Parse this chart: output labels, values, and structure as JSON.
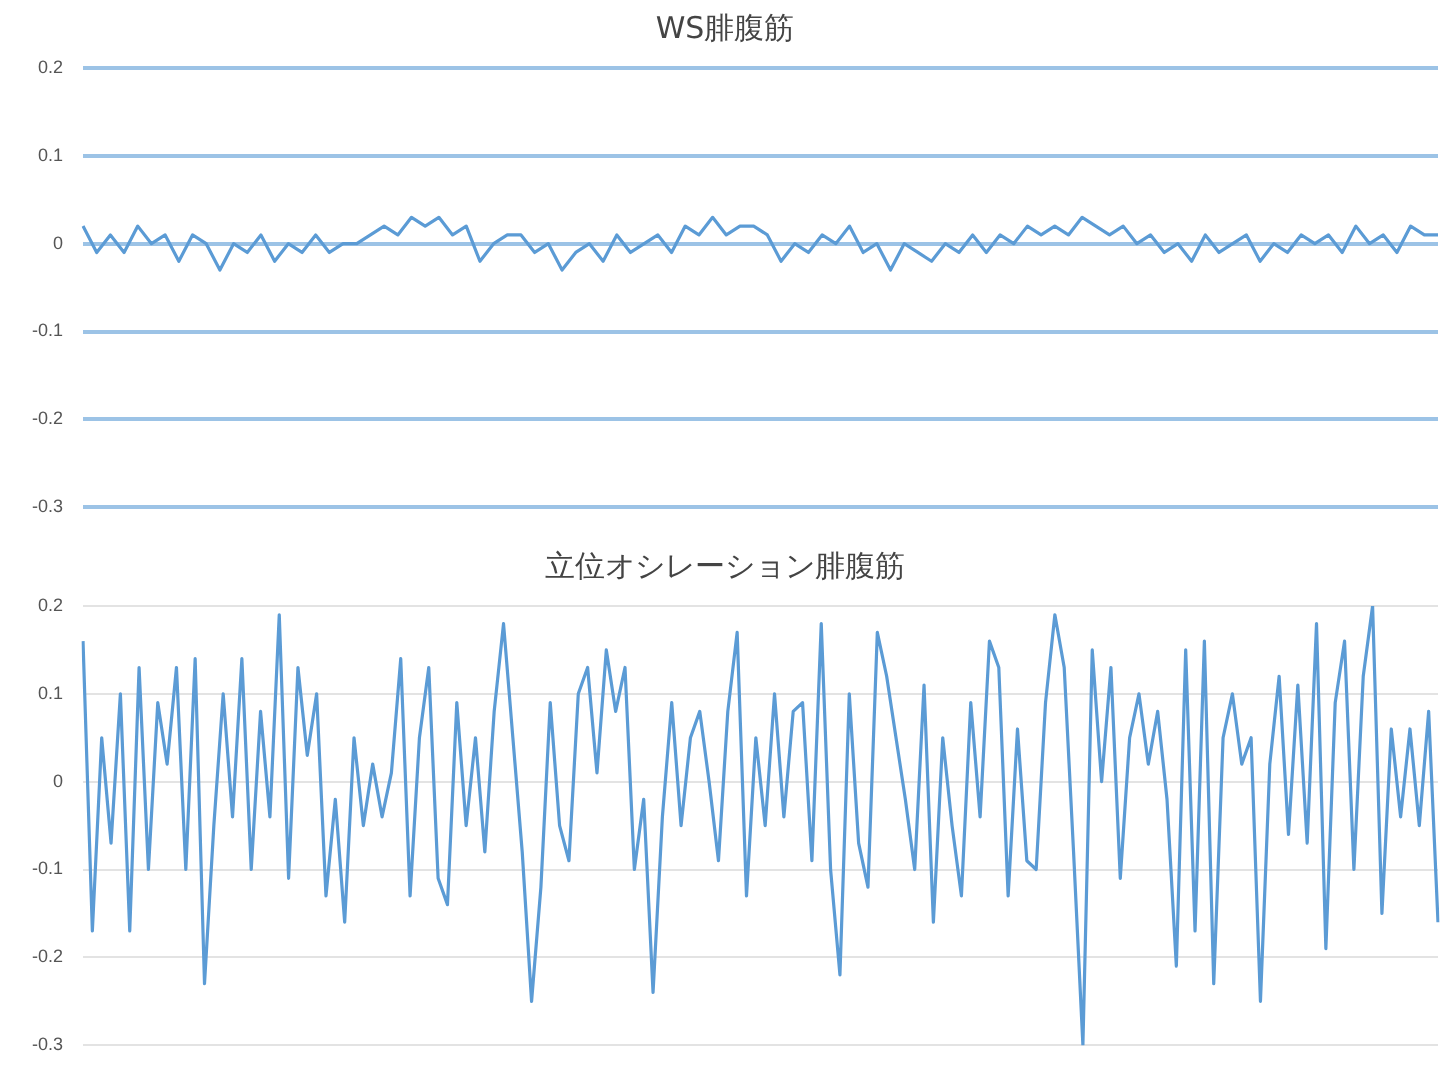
{
  "chart_data": [
    {
      "type": "line",
      "title": "WS腓腹筋",
      "categories": [
        null,
        null,
        null,
        null,
        null,
        null,
        null,
        null,
        null,
        null,
        null,
        null,
        null,
        null,
        null,
        null,
        null,
        null,
        null,
        null,
        null,
        null,
        null,
        null,
        null,
        null,
        null,
        null,
        null,
        null,
        null,
        null,
        null,
        null,
        null,
        null,
        null,
        null,
        null,
        null,
        null,
        null,
        null,
        null,
        null,
        null,
        null,
        null,
        null,
        null,
        null,
        null,
        null,
        null,
        null,
        null,
        null,
        null,
        null,
        null,
        null,
        null,
        null,
        null,
        null,
        null,
        null,
        null,
        null,
        null,
        null,
        null,
        null,
        null,
        null,
        null,
        null,
        null,
        null,
        null,
        null,
        null,
        null,
        null,
        null,
        null,
        null,
        null,
        null,
        null,
        null,
        null,
        null,
        null,
        null,
        null,
        null,
        null,
        null,
        null
      ],
      "series": [
        {
          "color": "#5b9bd5",
          "values": [
            0.02,
            -0.01,
            0.01,
            -0.01,
            0.02,
            0,
            0.01,
            -0.02,
            0.01,
            0,
            -0.03,
            0,
            -0.01,
            0.01,
            -0.02,
            0,
            -0.01,
            0.01,
            -0.01,
            0,
            0,
            0.01,
            0.02,
            0.01,
            0.03,
            0.02,
            0.03,
            0.01,
            0.02,
            -0.02,
            0,
            0.01,
            0.01,
            -0.01,
            0,
            -0.03,
            -0.01,
            0,
            -0.02,
            0.01,
            -0.01,
            0,
            0.01,
            -0.01,
            0.02,
            0.01,
            0.03,
            0.01,
            0.02,
            0.02,
            0.01,
            -0.02,
            0,
            -0.01,
            0.01,
            0,
            0.02,
            -0.01,
            0,
            -0.03,
            0,
            -0.01,
            -0.02,
            0,
            -0.01,
            0.01,
            -0.01,
            0.01,
            0,
            0.02,
            0.01,
            0.02,
            0.01,
            0.03,
            0.02,
            0.01,
            0.02,
            0,
            0.01,
            -0.01,
            0,
            -0.02,
            0.01,
            -0.01,
            0,
            0.01,
            -0.02,
            0,
            -0.01,
            0.01,
            0,
            0.01,
            -0.01,
            0.02,
            0,
            0.01,
            -0.01,
            0.02,
            0.01,
            0.01
          ]
        }
      ],
      "ylim": [
        -0.3,
        0.2
      ],
      "yticks": [
        -0.3,
        -0.2,
        -0.1,
        0,
        0.1,
        0.2
      ],
      "grid": "y",
      "tick_labels": "y",
      "legend": false,
      "marker": "none"
    },
    {
      "type": "line",
      "title": "立位オシレーション腓腹筋",
      "categories": [
        null,
        null,
        null,
        null,
        null,
        null,
        null,
        null,
        null,
        null,
        null,
        null,
        null,
        null,
        null,
        null,
        null,
        null,
        null,
        null,
        null,
        null,
        null,
        null,
        null,
        null,
        null,
        null,
        null,
        null,
        null,
        null,
        null,
        null,
        null,
        null,
        null,
        null,
        null,
        null,
        null,
        null,
        null,
        null,
        null,
        null,
        null,
        null,
        null,
        null,
        null,
        null,
        null,
        null,
        null,
        null,
        null,
        null,
        null,
        null,
        null,
        null,
        null,
        null,
        null,
        null,
        null,
        null,
        null,
        null,
        null,
        null,
        null,
        null,
        null,
        null,
        null,
        null,
        null,
        null,
        null,
        null,
        null,
        null,
        null,
        null,
        null,
        null,
        null,
        null,
        null,
        null,
        null,
        null,
        null,
        null,
        null,
        null,
        null,
        null,
        null,
        null,
        null,
        null,
        null,
        null,
        null,
        null,
        null,
        null,
        null,
        null,
        null,
        null,
        null,
        null,
        null,
        null,
        null,
        null,
        null,
        null,
        null,
        null,
        null,
        null,
        null,
        null,
        null,
        null,
        null,
        null,
        null,
        null,
        null,
        null,
        null,
        null,
        null,
        null,
        null,
        null,
        null,
        null,
        null,
        null
      ],
      "series": [
        {
          "color": "#5b9bd5",
          "values": [
            0.16,
            -0.17,
            0.05,
            -0.07,
            0.1,
            -0.17,
            0.13,
            -0.1,
            0.09,
            0.02,
            0.13,
            -0.1,
            0.14,
            -0.23,
            -0.05,
            0.1,
            -0.04,
            0.14,
            -0.1,
            0.08,
            -0.04,
            0.19,
            -0.11,
            0.13,
            0.03,
            0.1,
            -0.13,
            -0.02,
            -0.16,
            0.05,
            -0.05,
            0.02,
            -0.04,
            0.01,
            0.14,
            -0.13,
            0.05,
            0.13,
            -0.11,
            -0.14,
            0.09,
            -0.05,
            0.05,
            -0.08,
            0.08,
            0.18,
            0.05,
            -0.08,
            -0.25,
            -0.12,
            0.09,
            -0.05,
            -0.09,
            0.1,
            0.13,
            0.01,
            0.15,
            0.08,
            0.13,
            -0.1,
            -0.02,
            -0.24,
            -0.04,
            0.09,
            -0.05,
            0.05,
            0.08,
            0.0,
            -0.09,
            0.08,
            0.17,
            -0.13,
            0.05,
            -0.05,
            0.1,
            -0.04,
            0.08,
            0.09,
            -0.09,
            0.18,
            -0.1,
            -0.22,
            0.1,
            -0.07,
            -0.12,
            0.17,
            0.12,
            0.05,
            -0.02,
            -0.1,
            0.11,
            -0.16,
            0.05,
            -0.05,
            -0.13,
            0.09,
            -0.04,
            0.16,
            0.13,
            -0.13,
            0.06,
            -0.09,
            -0.1,
            0.09,
            0.19,
            0.13,
            -0.08,
            -0.3,
            0.15,
            0.0,
            0.13,
            -0.11,
            0.05,
            0.1,
            0.02,
            0.08,
            -0.02,
            -0.21,
            0.15,
            -0.17,
            0.16,
            -0.23,
            0.05,
            0.1,
            0.02,
            0.05,
            -0.25,
            0.02,
            0.12,
            -0.06,
            0.11,
            -0.07,
            0.18,
            -0.19,
            0.09,
            0.16,
            -0.1,
            0.12,
            0.2,
            -0.15,
            0.06,
            -0.04,
            0.06,
            -0.05,
            0.08,
            -0.16
          ]
        }
      ],
      "ylim": [
        -0.3,
        0.2
      ],
      "yticks": [
        -0.3,
        -0.2,
        -0.1,
        0,
        0.1,
        0.2
      ],
      "grid": "y",
      "tick_labels": "y",
      "legend": false,
      "marker": "none"
    }
  ]
}
